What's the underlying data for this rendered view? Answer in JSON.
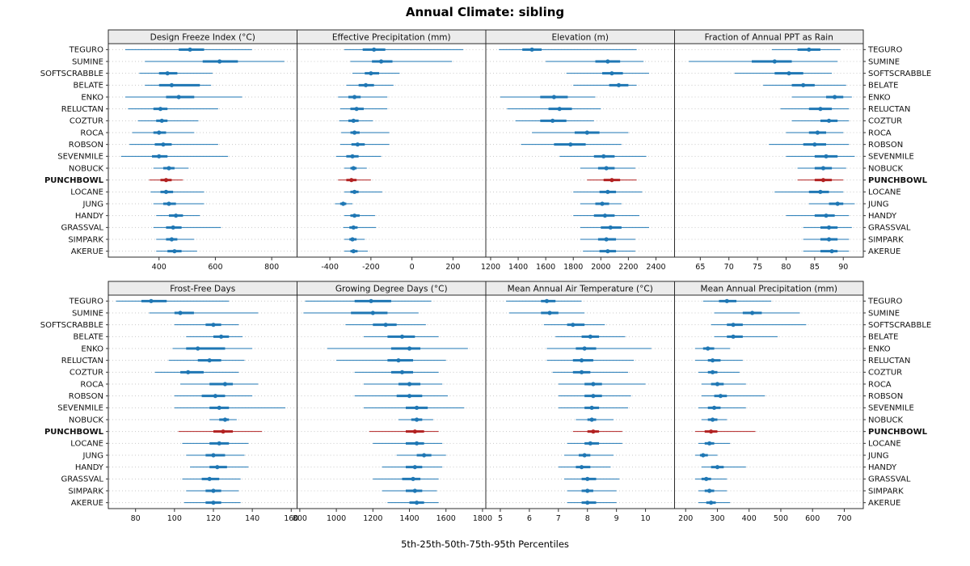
{
  "title": "Annual Climate: sibling",
  "footer": "5th-25th-50th-75th-95th Percentiles",
  "highlight_station": "PUNCHBOWL",
  "colors": {
    "series": "#1f77b4",
    "highlight": "#b22222",
    "panel_header_bg": "#ececec",
    "panel_border": "#2b2b2b",
    "grid": "#c9c9c9",
    "tick": "#333333",
    "text": "#111111"
  },
  "stations": [
    "TEGURO",
    "SUMINE",
    "SOFTSCRABBLE",
    "BELATE",
    "ENKO",
    "RELUCTAN",
    "COZTUR",
    "ROCA",
    "ROBSON",
    "SEVENMILE",
    "NOBUCK",
    "PUNCHBOWL",
    "LOCANE",
    "JUNG",
    "HANDY",
    "GRASSVAL",
    "SIMPARK",
    "AKERUE"
  ],
  "chart_data": {
    "type": "dotplot-intervals",
    "percentiles": [
      5,
      25,
      50,
      75,
      95
    ],
    "layout": {
      "rows": 2,
      "cols": 4,
      "grid": "dotted-horizontal",
      "legend": "none"
    },
    "panels": [
      {
        "title": "Design Freeze Index (°C)",
        "row": 0,
        "col": 0,
        "xlim": [
          220,
          890
        ],
        "ticks": [
          400,
          600,
          800
        ],
        "values": [
          [
            280,
            470,
            510,
            560,
            730
          ],
          [
            350,
            555,
            615,
            680,
            845
          ],
          [
            330,
            400,
            430,
            465,
            590
          ],
          [
            350,
            400,
            445,
            545,
            585
          ],
          [
            280,
            425,
            470,
            525,
            695
          ],
          [
            290,
            380,
            405,
            430,
            610
          ],
          [
            325,
            390,
            410,
            430,
            540
          ],
          [
            305,
            380,
            400,
            425,
            525
          ],
          [
            295,
            385,
            415,
            445,
            610
          ],
          [
            265,
            375,
            400,
            430,
            645
          ],
          [
            380,
            415,
            435,
            455,
            505
          ],
          [
            365,
            405,
            425,
            445,
            485
          ],
          [
            370,
            405,
            425,
            450,
            560
          ],
          [
            380,
            415,
            435,
            460,
            560
          ],
          [
            390,
            435,
            460,
            485,
            545
          ],
          [
            380,
            425,
            450,
            480,
            620
          ],
          [
            390,
            425,
            445,
            465,
            525
          ],
          [
            390,
            430,
            455,
            480,
            535
          ]
        ]
      },
      {
        "title": "Effective Precipitation (mm)",
        "row": 0,
        "col": 1,
        "xlim": [
          -560,
          360
        ],
        "ticks": [
          -400,
          -200,
          0,
          200
        ],
        "values": [
          [
            -330,
            -240,
            -185,
            -130,
            250
          ],
          [
            -300,
            -195,
            -150,
            -95,
            195
          ],
          [
            -290,
            -230,
            -200,
            -160,
            -60
          ],
          [
            -320,
            -260,
            -225,
            -185,
            -90
          ],
          [
            -360,
            -310,
            -280,
            -250,
            -120
          ],
          [
            -350,
            -300,
            -270,
            -235,
            -120
          ],
          [
            -355,
            -310,
            -285,
            -260,
            -190
          ],
          [
            -345,
            -300,
            -280,
            -255,
            -110
          ],
          [
            -350,
            -295,
            -265,
            -230,
            -110
          ],
          [
            -370,
            -320,
            -290,
            -260,
            -150
          ],
          [
            -330,
            -300,
            -285,
            -270,
            -220
          ],
          [
            -360,
            -320,
            -295,
            -270,
            -200
          ],
          [
            -330,
            -300,
            -280,
            -260,
            -145
          ],
          [
            -375,
            -350,
            -335,
            -320,
            -290
          ],
          [
            -330,
            -300,
            -280,
            -255,
            -180
          ],
          [
            -335,
            -305,
            -285,
            -265,
            -175
          ],
          [
            -330,
            -305,
            -290,
            -270,
            -230
          ],
          [
            -330,
            -300,
            -285,
            -265,
            -215
          ]
        ]
      },
      {
        "title": "Elevation (m)",
        "row": 0,
        "col": 2,
        "xlim": [
          1165,
          2535
        ],
        "ticks": [
          1200,
          1400,
          1600,
          1800,
          2000,
          2200,
          2400
        ],
        "values": [
          [
            1260,
            1430,
            1500,
            1570,
            2260
          ],
          [
            1600,
            1960,
            2050,
            2140,
            2310
          ],
          [
            1750,
            2010,
            2080,
            2160,
            2350
          ],
          [
            1800,
            2060,
            2130,
            2200,
            2260
          ],
          [
            1270,
            1560,
            1660,
            1760,
            1960
          ],
          [
            1320,
            1620,
            1700,
            1790,
            2000
          ],
          [
            1380,
            1560,
            1650,
            1750,
            1950
          ],
          [
            1500,
            1810,
            1900,
            1990,
            2200
          ],
          [
            1420,
            1660,
            1780,
            1890,
            2150
          ],
          [
            1700,
            1950,
            2020,
            2100,
            2330
          ],
          [
            1850,
            1980,
            2040,
            2100,
            2250
          ],
          [
            1900,
            2020,
            2080,
            2140,
            2260
          ],
          [
            1800,
            1990,
            2050,
            2110,
            2300
          ],
          [
            1850,
            1960,
            2010,
            2060,
            2150
          ],
          [
            1800,
            1950,
            2030,
            2100,
            2280
          ],
          [
            1850,
            2000,
            2070,
            2150,
            2350
          ],
          [
            1850,
            1980,
            2040,
            2110,
            2250
          ],
          [
            1870,
            1990,
            2050,
            2110,
            2250
          ]
        ]
      },
      {
        "title": "Fraction of Annual PPT as Rain",
        "row": 0,
        "col": 3,
        "xlim": [
          60.5,
          93.5
        ],
        "ticks": [
          65,
          70,
          75,
          80,
          85,
          90
        ],
        "values": [
          [
            77.5,
            82,
            84,
            86,
            89.5
          ],
          [
            63,
            74,
            78,
            81,
            89
          ],
          [
            71,
            78,
            80.5,
            83,
            88
          ],
          [
            76,
            81,
            83,
            85,
            90.5
          ],
          [
            81,
            87,
            88.5,
            90,
            91.5
          ],
          [
            79,
            84,
            86,
            88,
            91
          ],
          [
            81,
            86,
            87.5,
            89,
            91
          ],
          [
            80,
            84,
            85.5,
            87,
            90
          ],
          [
            77,
            83,
            85,
            87,
            91
          ],
          [
            80,
            85,
            87,
            89,
            92
          ],
          [
            82,
            85,
            86.5,
            88,
            90.5
          ],
          [
            82,
            85,
            86.5,
            88,
            90
          ],
          [
            78,
            84,
            86,
            87.5,
            90
          ],
          [
            84,
            87.5,
            89,
            90,
            92
          ],
          [
            80,
            85,
            87,
            88.5,
            91
          ],
          [
            83,
            86,
            87.5,
            89,
            91.5
          ],
          [
            83,
            86,
            87.5,
            89,
            91
          ],
          [
            83,
            86,
            88,
            89,
            91
          ]
        ]
      },
      {
        "title": "Frost-Free Days",
        "row": 1,
        "col": 0,
        "xlim": [
          66,
          163
        ],
        "ticks": [
          80,
          100,
          120,
          140,
          160
        ],
        "values": [
          [
            70,
            83,
            88,
            96,
            128
          ],
          [
            87,
            100,
            103,
            110,
            143
          ],
          [
            100,
            116,
            120,
            124,
            133
          ],
          [
            106,
            120,
            124,
            128,
            135
          ],
          [
            99,
            106,
            112,
            126,
            140
          ],
          [
            97,
            112,
            118,
            124,
            136
          ],
          [
            90,
            103,
            107,
            115,
            133
          ],
          [
            103,
            118,
            126,
            130,
            143
          ],
          [
            100,
            114,
            121,
            126,
            140
          ],
          [
            100,
            118,
            123,
            128,
            157
          ],
          [
            118,
            123,
            126,
            128,
            132
          ],
          [
            102,
            120,
            125,
            130,
            145
          ],
          [
            104,
            118,
            123,
            128,
            138
          ],
          [
            106,
            116,
            120,
            126,
            136
          ],
          [
            108,
            118,
            122,
            127,
            138
          ],
          [
            104,
            114,
            118,
            123,
            134
          ],
          [
            106,
            116,
            120,
            124,
            133
          ],
          [
            105,
            116,
            120,
            124,
            134
          ]
        ]
      },
      {
        "title": "Growing Degree Days (°C)",
        "row": 1,
        "col": 1,
        "xlim": [
          785,
          1818
        ],
        "ticks": [
          800,
          1000,
          1200,
          1400,
          1600,
          1800
        ],
        "values": [
          [
            830,
            1100,
            1190,
            1300,
            1520
          ],
          [
            820,
            1080,
            1200,
            1280,
            1450
          ],
          [
            1050,
            1200,
            1270,
            1330,
            1490
          ],
          [
            1150,
            1280,
            1360,
            1430,
            1560
          ],
          [
            950,
            1300,
            1400,
            1460,
            1720
          ],
          [
            1000,
            1280,
            1340,
            1420,
            1600
          ],
          [
            1100,
            1300,
            1360,
            1420,
            1560
          ],
          [
            1150,
            1340,
            1400,
            1460,
            1580
          ],
          [
            1100,
            1330,
            1400,
            1470,
            1610
          ],
          [
            1150,
            1380,
            1440,
            1500,
            1700
          ],
          [
            1340,
            1410,
            1440,
            1470,
            1530
          ],
          [
            1180,
            1380,
            1430,
            1480,
            1560
          ],
          [
            1200,
            1380,
            1440,
            1480,
            1580
          ],
          [
            1330,
            1440,
            1480,
            1520,
            1600
          ],
          [
            1250,
            1380,
            1430,
            1470,
            1580
          ],
          [
            1200,
            1360,
            1420,
            1460,
            1560
          ],
          [
            1250,
            1380,
            1430,
            1470,
            1550
          ],
          [
            1280,
            1400,
            1440,
            1480,
            1560
          ]
        ]
      },
      {
        "title": "Mean Annual Air Temperature (°C)",
        "row": 1,
        "col": 2,
        "xlim": [
          4.5,
          11
        ],
        "ticks": [
          5,
          6,
          7,
          8,
          9,
          10
        ],
        "values": [
          [
            5.2,
            6.4,
            6.6,
            6.9,
            7.8
          ],
          [
            5.3,
            6.4,
            6.7,
            7.0,
            7.9
          ],
          [
            6.5,
            7.3,
            7.5,
            7.9,
            8.6
          ],
          [
            6.9,
            7.8,
            8.1,
            8.4,
            9.3
          ],
          [
            6.6,
            7.6,
            7.9,
            8.3,
            10.2
          ],
          [
            6.6,
            7.5,
            7.8,
            8.2,
            9.6
          ],
          [
            6.8,
            7.5,
            7.8,
            8.1,
            9.4
          ],
          [
            7.0,
            7.9,
            8.2,
            8.5,
            10.0
          ],
          [
            7.0,
            7.9,
            8.2,
            8.5,
            9.5
          ],
          [
            7.0,
            7.9,
            8.15,
            8.4,
            9.4
          ],
          [
            7.6,
            8.0,
            8.15,
            8.3,
            8.9
          ],
          [
            7.5,
            8.0,
            8.2,
            8.4,
            9.2
          ],
          [
            7.3,
            7.9,
            8.1,
            8.4,
            9.2
          ],
          [
            7.2,
            7.7,
            7.9,
            8.1,
            8.9
          ],
          [
            7.0,
            7.6,
            7.8,
            8.1,
            8.8
          ],
          [
            7.2,
            7.8,
            8.0,
            8.3,
            9.1
          ],
          [
            7.3,
            7.8,
            8.0,
            8.2,
            9.0
          ],
          [
            7.3,
            7.8,
            8.0,
            8.3,
            9.0
          ]
        ]
      },
      {
        "title": "Mean Annual Precipitation (mm)",
        "row": 1,
        "col": 3,
        "xlim": [
          165,
          760
        ],
        "ticks": [
          200,
          300,
          400,
          500,
          600,
          700
        ],
        "values": [
          [
            255,
            305,
            330,
            360,
            470
          ],
          [
            290,
            380,
            410,
            440,
            560
          ],
          [
            280,
            330,
            350,
            380,
            580
          ],
          [
            290,
            330,
            350,
            380,
            490
          ],
          [
            230,
            255,
            270,
            290,
            340
          ],
          [
            230,
            270,
            285,
            310,
            380
          ],
          [
            240,
            270,
            285,
            300,
            370
          ],
          [
            250,
            280,
            300,
            320,
            390
          ],
          [
            250,
            290,
            310,
            330,
            450
          ],
          [
            240,
            270,
            290,
            310,
            390
          ],
          [
            250,
            270,
            285,
            300,
            330
          ],
          [
            230,
            260,
            280,
            300,
            420
          ],
          [
            240,
            260,
            275,
            290,
            340
          ],
          [
            230,
            245,
            255,
            270,
            300
          ],
          [
            250,
            280,
            300,
            320,
            390
          ],
          [
            230,
            250,
            265,
            280,
            330
          ],
          [
            240,
            260,
            275,
            290,
            330
          ],
          [
            240,
            265,
            280,
            295,
            340
          ]
        ]
      }
    ]
  }
}
